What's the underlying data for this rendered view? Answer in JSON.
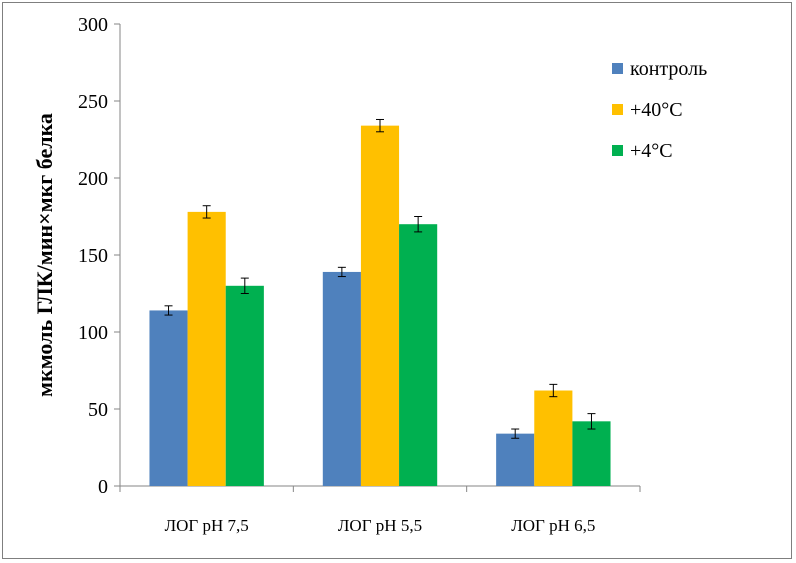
{
  "chart_data": {
    "type": "bar",
    "categories": [
      "ЛОГ рН 7,5",
      "ЛОГ рН 5,5",
      "ЛОГ рН 6,5"
    ],
    "series": [
      {
        "name": "контроль",
        "color": "#4f81bd",
        "values": [
          114,
          139,
          34
        ],
        "errors": [
          3,
          3,
          3
        ]
      },
      {
        "name": "+40°С",
        "color": "#ffc000",
        "values": [
          178,
          234,
          62
        ],
        "errors": [
          4,
          4,
          4
        ]
      },
      {
        "name": "+4°С",
        "color": "#00b050",
        "values": [
          130,
          170,
          42
        ],
        "errors": [
          5,
          5,
          5
        ]
      }
    ],
    "ylabel": "мкмоль ГЛК/мин×мкг белка",
    "ylim": [
      0,
      300
    ],
    "yticks": [
      0,
      50,
      100,
      150,
      200,
      250,
      300
    ],
    "ytick_labels": [
      "0",
      "50",
      "100",
      "150",
      "200",
      "250",
      "300"
    ],
    "grid": false,
    "legend_position": "top-right"
  }
}
